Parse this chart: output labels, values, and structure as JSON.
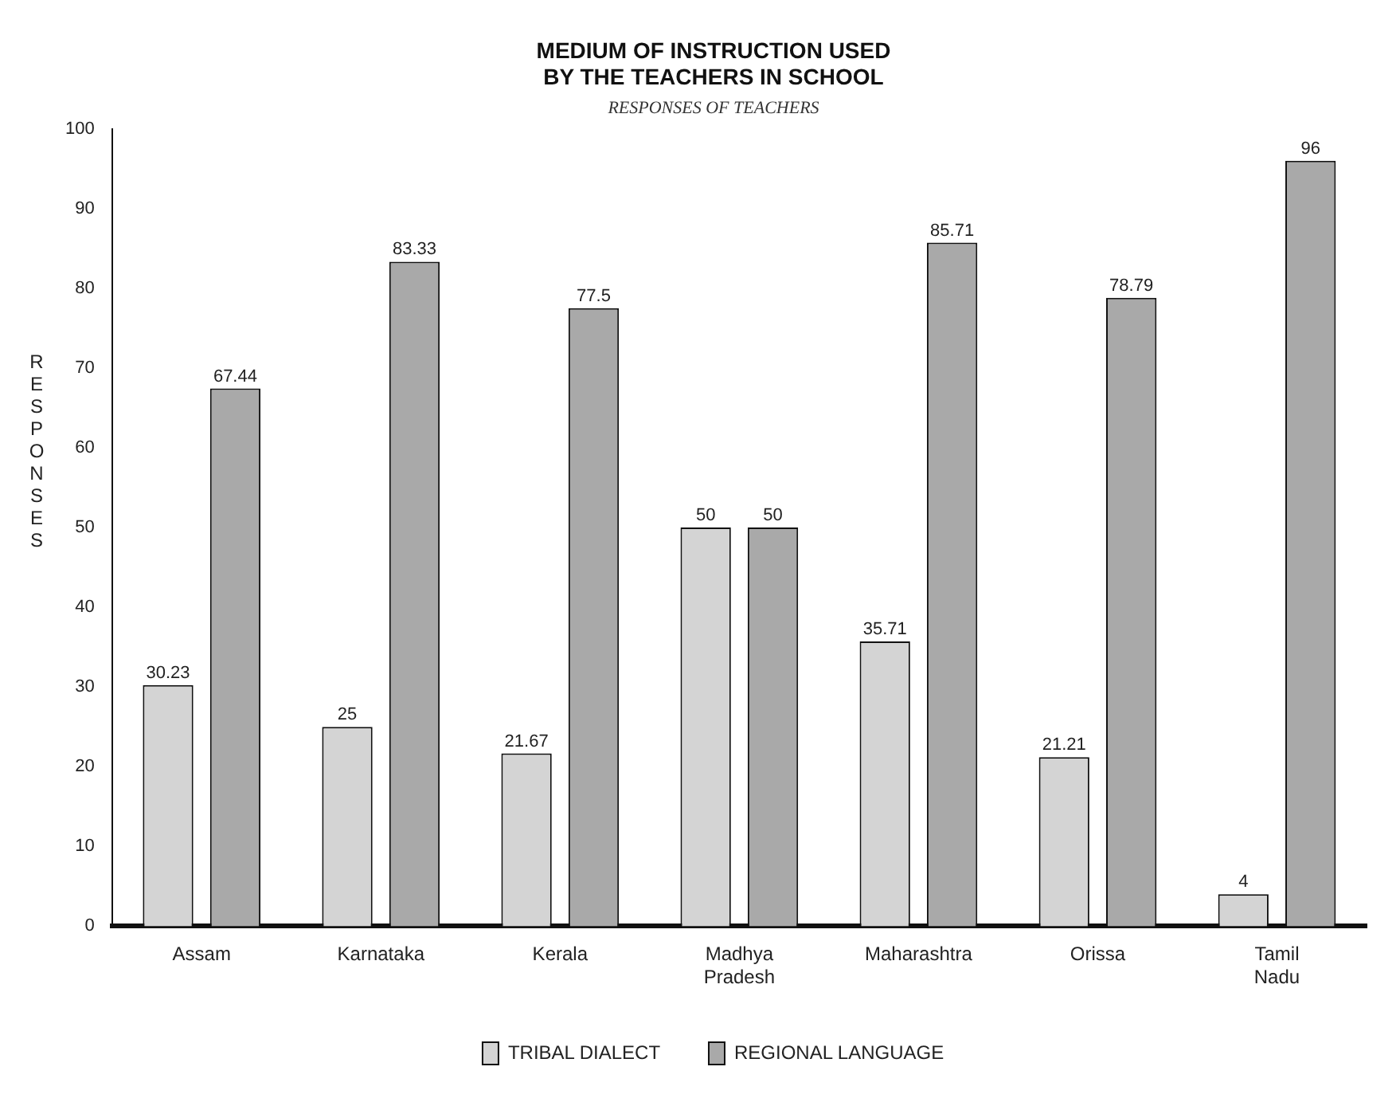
{
  "chart_data": {
    "type": "bar",
    "title": [
      "MEDIUM OF INSTRUCTION USED",
      "BY THE TEACHERS IN SCHOOL"
    ],
    "subtitle": "RESPONSES OF TEACHERS",
    "ylabel": "RESPONSES",
    "categories": [
      "Assam",
      "Karnataka",
      "Kerala",
      "Madhya Pradesh",
      "Maharashtra",
      "Orissa",
      "Tamil Nadu"
    ],
    "series": [
      {
        "name": "TRIBAL DIALECT",
        "color": "#d4d4d4",
        "values": [
          30.23,
          25,
          21.67,
          50,
          35.71,
          21.21,
          4
        ]
      },
      {
        "name": "REGIONAL LANGUAGE",
        "color": "#a9a9a9",
        "values": [
          67.44,
          83.33,
          77.5,
          50,
          85.71,
          78.79,
          96
        ]
      }
    ],
    "ylim": [
      0,
      100
    ],
    "yticks": [
      0,
      10,
      20,
      30,
      40,
      50,
      60,
      70,
      80,
      90,
      100
    ],
    "grid": false,
    "legend": "bottom",
    "data_labels": true
  }
}
